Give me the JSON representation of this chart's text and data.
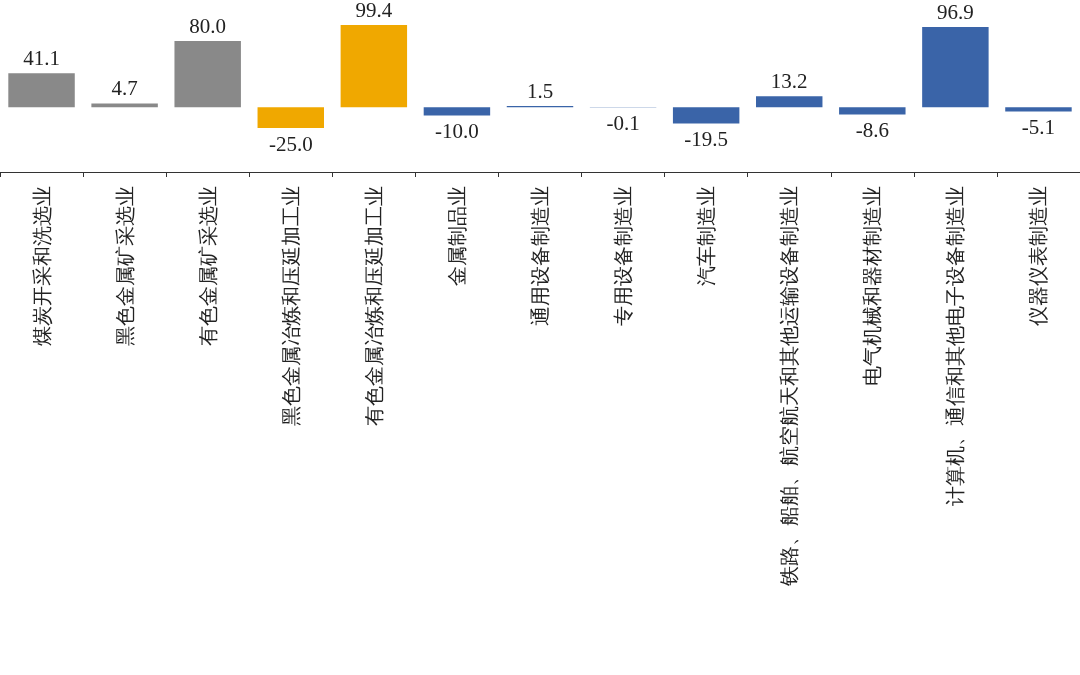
{
  "chart_data": {
    "type": "bar",
    "categories": [
      "煤炭开采和洗选业",
      "黑色金属矿采选业",
      "有色金属矿采选业",
      "黑色金属冶炼和压延加工业",
      "有色金属冶炼和压延加工业",
      "金属制品业",
      "通用设备制造业",
      "专用设备制造业",
      "汽车制造业",
      "铁路、船舶、航空航天和其他运输设备制造业",
      "电气机械和器材制造业",
      "计算机、通信和其他电子设备制造业",
      "仪器仪表制造业"
    ],
    "values": [
      41.1,
      4.7,
      80.0,
      -25.0,
      99.4,
      -10.0,
      1.5,
      -0.1,
      -19.5,
      13.2,
      -8.6,
      96.9,
      -5.1
    ],
    "value_labels": [
      "41.1",
      "4.7",
      "80.0",
      "-25.0",
      "99.4",
      "-10.0",
      "1.5",
      "-0.1",
      "-19.5",
      "13.2",
      "-8.6",
      "96.9",
      "-5.1"
    ],
    "colors": [
      "#898989",
      "#898989",
      "#898989",
      "#f0a800",
      "#f0a800",
      "#3a64a8",
      "#3a64a8",
      "#3a64a8",
      "#3a64a8",
      "#3a64a8",
      "#3a64a8",
      "#3a64a8",
      "#3a64a8"
    ],
    "tick_labels": "x",
    "grid": false
  }
}
